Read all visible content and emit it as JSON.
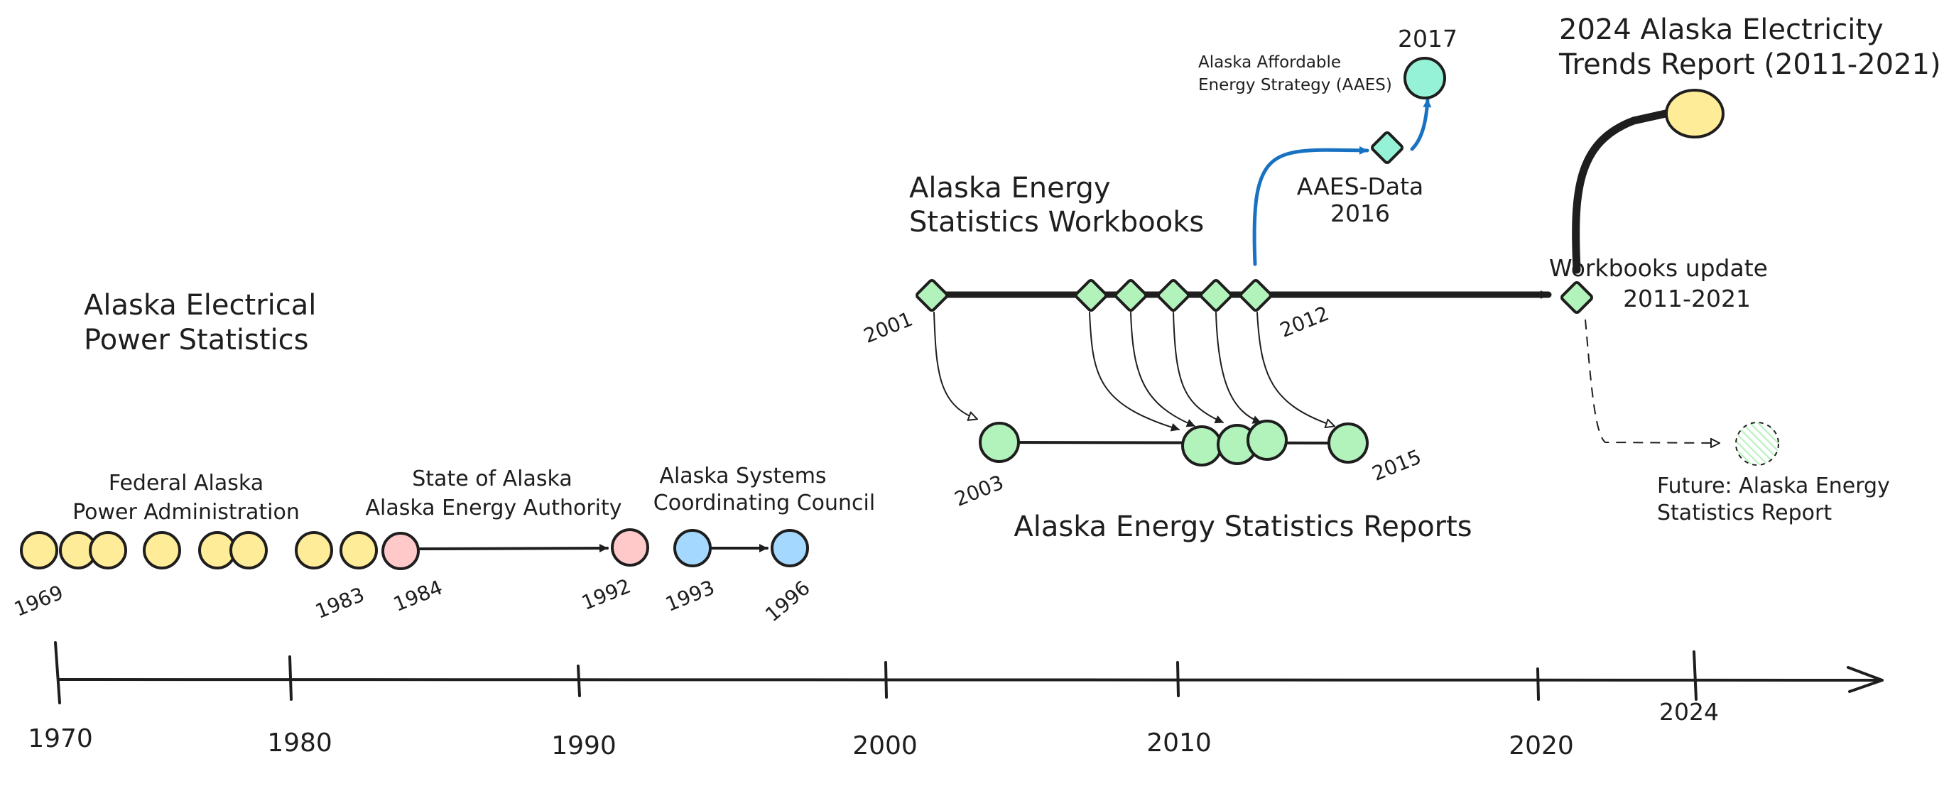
{
  "colors": {
    "yellow": "#ffec99",
    "pink": "#ffc9c9",
    "blue": "#a5d8ff",
    "green": "#b2f2bb",
    "teal": "#96f2d7",
    "stroke": "#1e1e1e",
    "blue_arrow": "#1971c2"
  },
  "axis": {
    "ticks": [
      "1970",
      "1980",
      "1990",
      "2000",
      "2010",
      "2020",
      "2024"
    ]
  },
  "groups": {
    "aeps_title_line1": "Alaska Electrical",
    "aeps_title_line2": "Power Statistics",
    "fapa_line1": "Federal Alaska",
    "fapa_line2": "Power Administration",
    "soa_line1": "State of Alaska",
    "soa_line2": "Alaska Energy Authority",
    "ascc_line1": "Alaska Systems",
    "ascc_line2": "Coordinating Council",
    "workbooks_line1": "Alaska Energy",
    "workbooks_line2": "Statistics Workbooks",
    "reports_title": "Alaska Energy Statistics Reports",
    "aaes_line1": "Alaska Affordable",
    "aaes_line2": "Energy Strategy (AAES)",
    "aaes_data_line1": "AAES-Data",
    "aaes_data_line2": "2016",
    "trends_line1": "2024 Alaska Electricity",
    "trends_line2": "Trends Report (2011-2021)",
    "update_line1": "Workbooks update",
    "update_line2": "2011-2021",
    "future_line1": "Future: Alaska Energy",
    "future_line2": "Statistics Report"
  },
  "years": {
    "y1969": "1969",
    "y1983": "1983",
    "y1984": "1984",
    "y1992": "1992",
    "y1993": "1993",
    "y1996": "1996",
    "y2001": "2001",
    "y2003": "2003",
    "y2012": "2012",
    "y2015": "2015",
    "y2017": "2017"
  }
}
